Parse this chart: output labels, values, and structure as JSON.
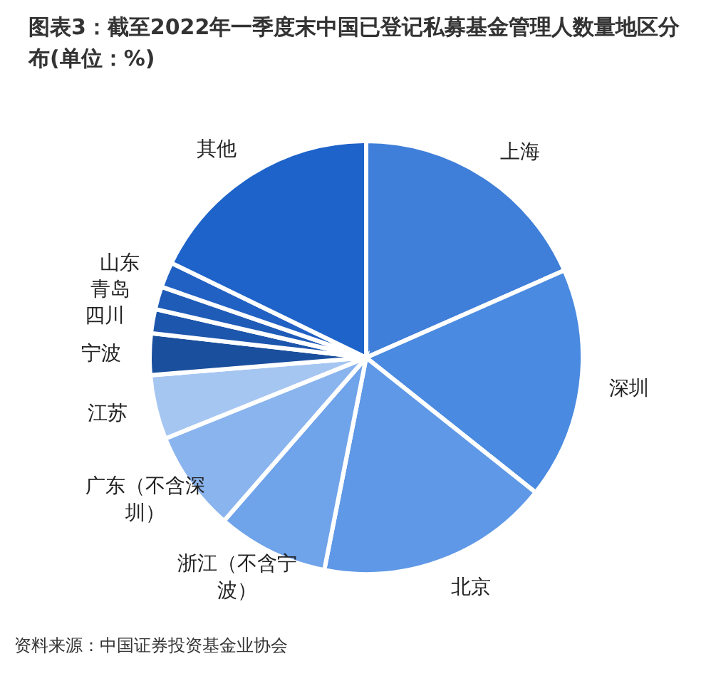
{
  "chart_data": {
    "type": "pie",
    "title": "图表3：截至2022年一季度末中国已登记私募基金管理人数量地区分布(单位：%)",
    "categories": [
      "上海",
      "深圳",
      "北京",
      "浙江（不含宁波）",
      "广东（不含深圳）",
      "江苏",
      "宁波",
      "四川",
      "青岛",
      "山东",
      "其他"
    ],
    "values": [
      18.4,
      17.3,
      17.4,
      8.3,
      7.5,
      4.8,
      3.1,
      1.8,
      1.7,
      1.9,
      17.8
    ],
    "colors": [
      "#3f7fd9",
      "#4a8ae0",
      "#5e98e6",
      "#6fa3ea",
      "#8ab4ee",
      "#a6c6f2",
      "#1a4f9e",
      "#1d56ad",
      "#1f5cb8",
      "#2261c4",
      "#1e63c9"
    ],
    "annotations": [
      "资料来源：中国证券投资基金业协会"
    ]
  }
}
